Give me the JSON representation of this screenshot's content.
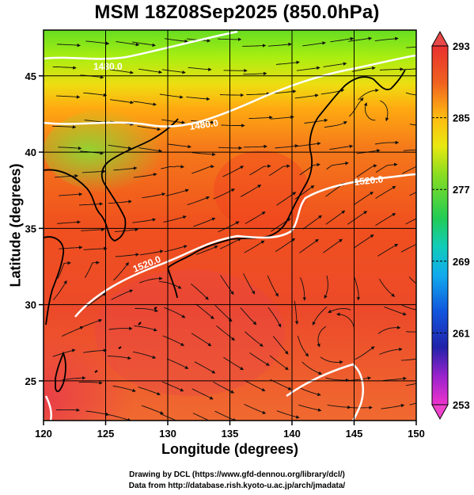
{
  "title": "MSM 18Z08Sep2025 (850.0hPa)",
  "map": {
    "xlabel": "Longitude (degrees)",
    "ylabel": "Latitude  (degrees)",
    "lon_range": [
      120,
      150
    ],
    "lat_range": [
      22.4,
      48
    ],
    "x_ticks": [
      "120",
      "125",
      "130",
      "135",
      "140",
      "145",
      "150"
    ],
    "y_ticks": [
      "25",
      "30",
      "35",
      "40",
      "45"
    ],
    "grid": true,
    "contour_labels": [
      "1480.0",
      "1480.0",
      "1520.0",
      "1520.0"
    ]
  },
  "colorbar": {
    "min": 253,
    "max": 293,
    "labels": [
      "293",
      "285",
      "277",
      "269",
      "261",
      "253"
    ]
  },
  "credits": {
    "line1": "Drawing by DCL (https://www.gfd-dennou.org/library/dcl/)",
    "line2": "Data from http://database.rish.kyoto-u.ac.jp/arch/jmadata/"
  }
}
